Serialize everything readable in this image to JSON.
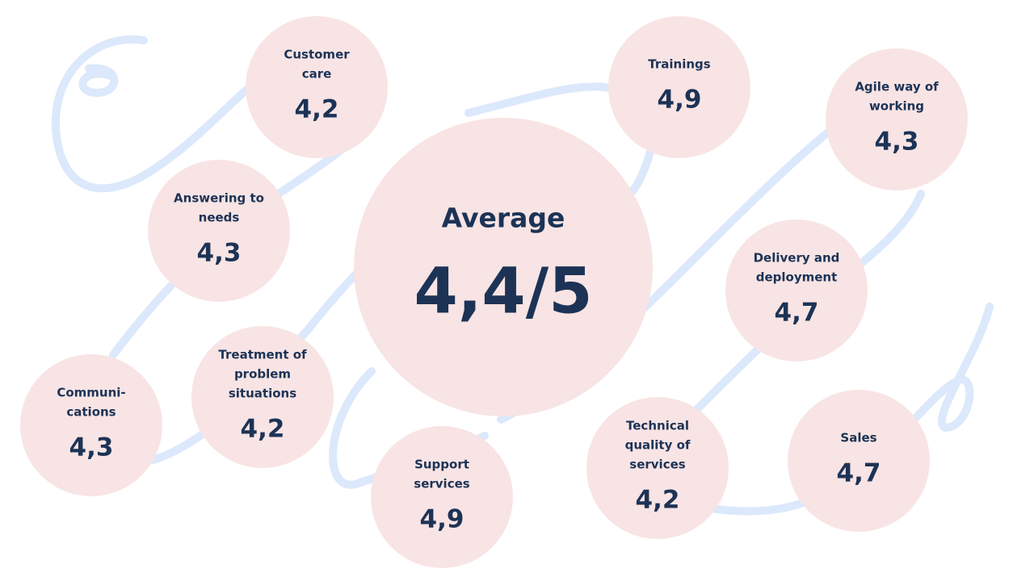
{
  "center": {
    "title": "Average",
    "value": "4,4/5"
  },
  "items": [
    {
      "label": [
        "Customer",
        "care"
      ],
      "value": "4,2"
    },
    {
      "label": [
        "Trainings"
      ],
      "value": "4,9"
    },
    {
      "label": [
        "Agile way of",
        "working"
      ],
      "value": "4,3"
    },
    {
      "label": [
        "Answering to",
        "needs"
      ],
      "value": "4,3"
    },
    {
      "label": [
        "Delivery and",
        "deployment"
      ],
      "value": "4,7"
    },
    {
      "label": [
        "Communi-",
        "cations"
      ],
      "value": "4,3"
    },
    {
      "label": [
        "Treatment of",
        "problem",
        "situations"
      ],
      "value": "4,2"
    },
    {
      "label": [
        "Support",
        "services"
      ],
      "value": "4,9"
    },
    {
      "label": [
        "Technical",
        "quality of",
        "services"
      ],
      "value": "4,2"
    },
    {
      "label": [
        "Sales"
      ],
      "value": "4,7"
    }
  ]
}
